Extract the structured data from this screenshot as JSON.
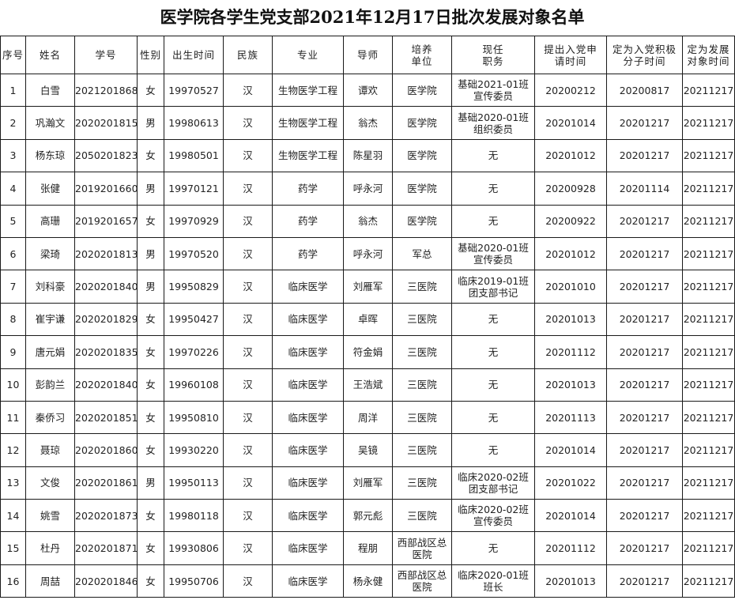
{
  "title": "医学院各学生党支部2021年12月17日批次发展对象名单",
  "headers": [
    "序号",
    "姓名",
    "学号",
    "性别",
    "出生时间",
    "民族",
    "专业",
    "导师",
    "培养\n单位",
    "现任\n职务",
    "提出入党申\n请时间",
    "定为入党积极\n分子时间",
    "定为发展\n对象时间"
  ],
  "rows": [
    [
      "1",
      "白雪",
      "2021201868",
      "女",
      "19970527",
      "汉",
      "生物医学工程",
      "谭欢",
      "医学院",
      "基础2021-01班\n宣传委员",
      "20200212",
      "20200817",
      "20211217"
    ],
    [
      "2",
      "巩瀚文",
      "2020201815",
      "男",
      "19980613",
      "汉",
      "生物医学工程",
      "翁杰",
      "医学院",
      "基础2020-01班\n组织委员",
      "20201014",
      "20201217",
      "20211217"
    ],
    [
      "3",
      "杨东琼",
      "2050201823",
      "女",
      "19980501",
      "汉",
      "生物医学工程",
      "陈星羽",
      "医学院",
      "无",
      "20201012",
      "20201217",
      "20211217"
    ],
    [
      "4",
      "张健",
      "2019201660",
      "男",
      "19970121",
      "汉",
      "药学",
      "呼永河",
      "医学院",
      "无",
      "20200928",
      "20201114",
      "20211217"
    ],
    [
      "5",
      "高珊",
      "2019201657",
      "女",
      "19970929",
      "汉",
      "药学",
      "翁杰",
      "医学院",
      "无",
      "20200922",
      "20201217",
      "20211217"
    ],
    [
      "6",
      "梁琦",
      "2020201813",
      "男",
      "19970520",
      "汉",
      "药学",
      "呼永河",
      "军总",
      "基础2020-01班\n宣传委员",
      "20201012",
      "20201217",
      "20211217"
    ],
    [
      "7",
      "刘科豪",
      "2020201840",
      "男",
      "19950829",
      "汉",
      "临床医学",
      "刘雁军",
      "三医院",
      "临床2019-01班\n团支部书记",
      "20201010",
      "20201217",
      "20211217"
    ],
    [
      "8",
      "崔宇谦",
      "2020201829",
      "女",
      "19950427",
      "汉",
      "临床医学",
      "卓晖",
      "三医院",
      "无",
      "20201013",
      "20201217",
      "20211217"
    ],
    [
      "9",
      "唐元娟",
      "2020201835",
      "女",
      "19970226",
      "汉",
      "临床医学",
      "符金娟",
      "三医院",
      "无",
      "20201112",
      "20201217",
      "20211217"
    ],
    [
      "10",
      "彭韵兰",
      "2020201840",
      "女",
      "19960108",
      "汉",
      "临床医学",
      "王浩斌",
      "三医院",
      "无",
      "20201013",
      "20201217",
      "20211217"
    ],
    [
      "11",
      "秦侨习",
      "2020201851",
      "女",
      "19950810",
      "汉",
      "临床医学",
      "周洋",
      "三医院",
      "无",
      "20201113",
      "20201217",
      "20211217"
    ],
    [
      "12",
      "聂琼",
      "2020201860",
      "女",
      "19930220",
      "汉",
      "临床医学",
      "吴镜",
      "三医院",
      "无",
      "20201014",
      "20201217",
      "20211217"
    ],
    [
      "13",
      "文俊",
      "2020201861",
      "男",
      "19950113",
      "汉",
      "临床医学",
      "刘雁军",
      "三医院",
      "临床2020-02班\n团支部书记",
      "20201022",
      "20201217",
      "20211217"
    ],
    [
      "14",
      "姚雪",
      "2020201873",
      "女",
      "19980118",
      "汉",
      "临床医学",
      "郭元彪",
      "三医院",
      "临床2020-02班\n宣传委员",
      "20201014",
      "20201217",
      "20211217"
    ],
    [
      "15",
      "杜丹",
      "2020201871",
      "女",
      "19930806",
      "汉",
      "临床医学",
      "程朋",
      "西部战区总\n医院",
      "无",
      "20201112",
      "20201217",
      "20211217"
    ],
    [
      "16",
      "周喆",
      "2020201846",
      "女",
      "19950706",
      "汉",
      "临床医学",
      "杨永健",
      "西部战区总\n医院",
      "临床2020-01班\n班长",
      "20201013",
      "20201217",
      "20211217"
    ]
  ]
}
